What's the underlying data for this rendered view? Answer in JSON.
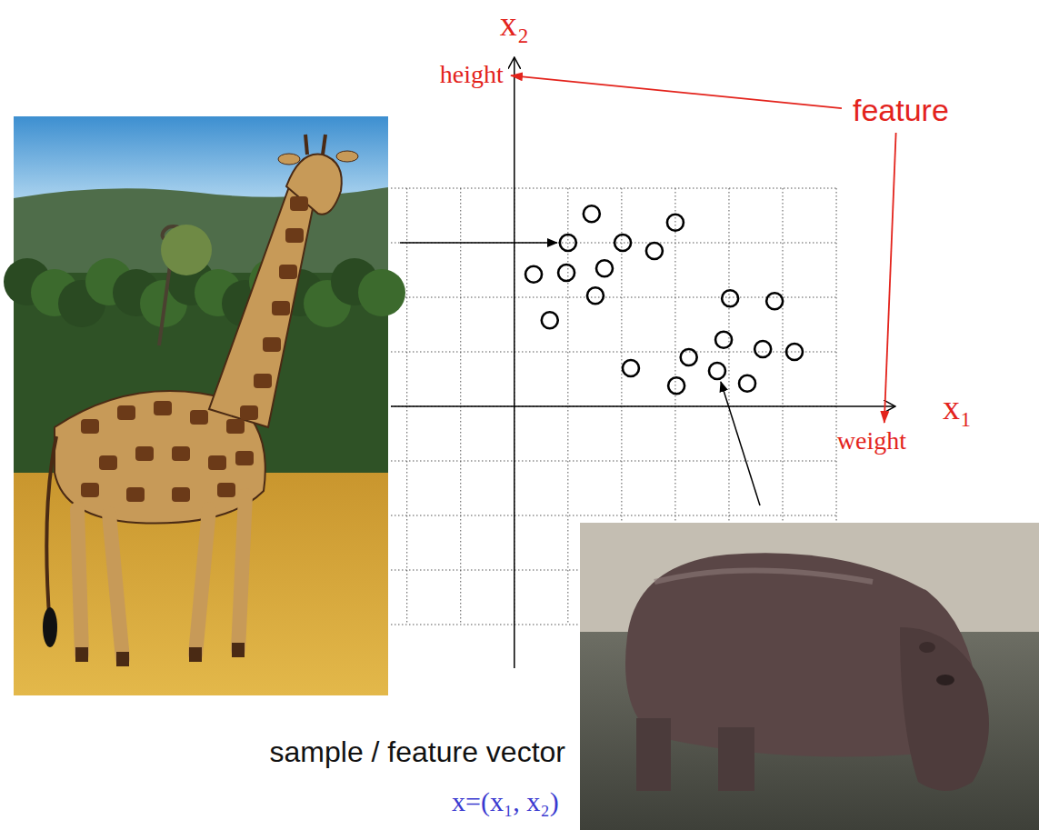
{
  "chart_data": {
    "type": "scatter",
    "xlabel": "x₁",
    "ylabel": "x₂",
    "x": [
      1.44,
      3.0,
      1.0,
      2.02,
      2.61,
      0.36,
      0.97,
      1.68,
      1.51,
      0.66,
      4.02,
      4.85,
      3.9,
      4.63,
      5.22,
      3.25,
      2.17,
      3.78,
      3.02,
      4.34
    ],
    "values": [
      3.53,
      3.37,
      3.0,
      3.0,
      2.85,
      2.42,
      2.45,
      2.53,
      2.03,
      1.58,
      1.98,
      1.93,
      1.22,
      1.05,
      1.0,
      0.9,
      0.7,
      0.65,
      0.38,
      0.42
    ],
    "color": "#000000",
    "marker": "circle",
    "xlim": [
      -2.3,
      7.1
    ],
    "ylim": [
      -4.8,
      6.4
    ],
    "xticks": [
      -2,
      -1,
      0,
      1,
      2,
      3,
      4,
      5,
      6
    ],
    "yticks": [
      -4,
      -3,
      -2,
      -1,
      0,
      1,
      2,
      3,
      4
    ],
    "grid": true,
    "tick_labels": false,
    "annotations": [
      {
        "text": "height"
      },
      {
        "text": "weight"
      },
      {
        "text": "feature"
      },
      {
        "text": "sample / feature vector"
      },
      {
        "text": "x=(x₁, x₂)"
      }
    ]
  }
}
